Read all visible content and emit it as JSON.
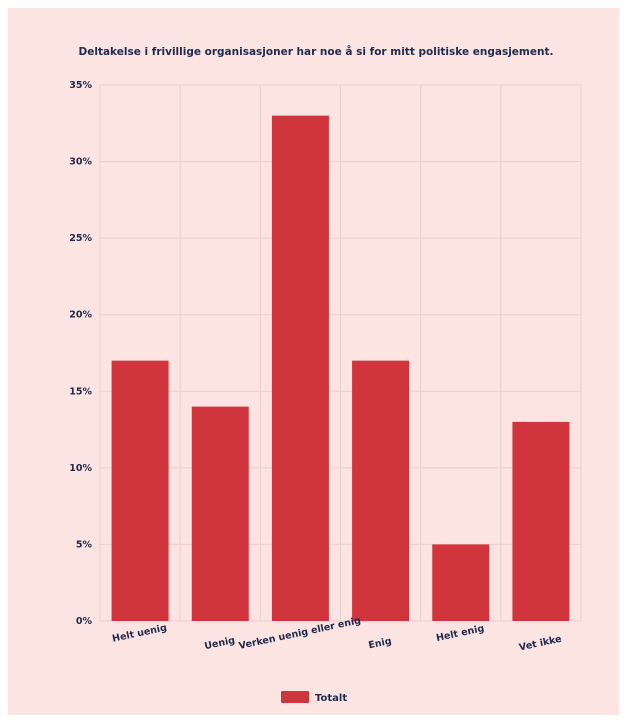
{
  "chart_data": {
    "type": "bar",
    "title": "Deltakelse i frivillige organisasjoner har noe å si for mitt politiske engasjement.",
    "categories": [
      "Helt uenig",
      "Uenig",
      "Verken uenig eller enig",
      "Enig",
      "Helt enig",
      "Vet ikke"
    ],
    "series": [
      {
        "name": "Totalt",
        "values": [
          17,
          14,
          33,
          17,
          5,
          13
        ]
      }
    ],
    "ylim": [
      0,
      35
    ],
    "yticks": [
      0,
      5,
      10,
      15,
      20,
      25,
      30,
      35
    ],
    "y_tick_labels": [
      "0%",
      "5%",
      "10%",
      "15%",
      "20%",
      "25%",
      "30%",
      "35%"
    ],
    "grid": true,
    "legend": "bottom-center",
    "colors": {
      "bar": "#d0343c",
      "background": "#fbe4e1",
      "grid": "#e9cfcc",
      "text": "#1f2a4d"
    }
  }
}
